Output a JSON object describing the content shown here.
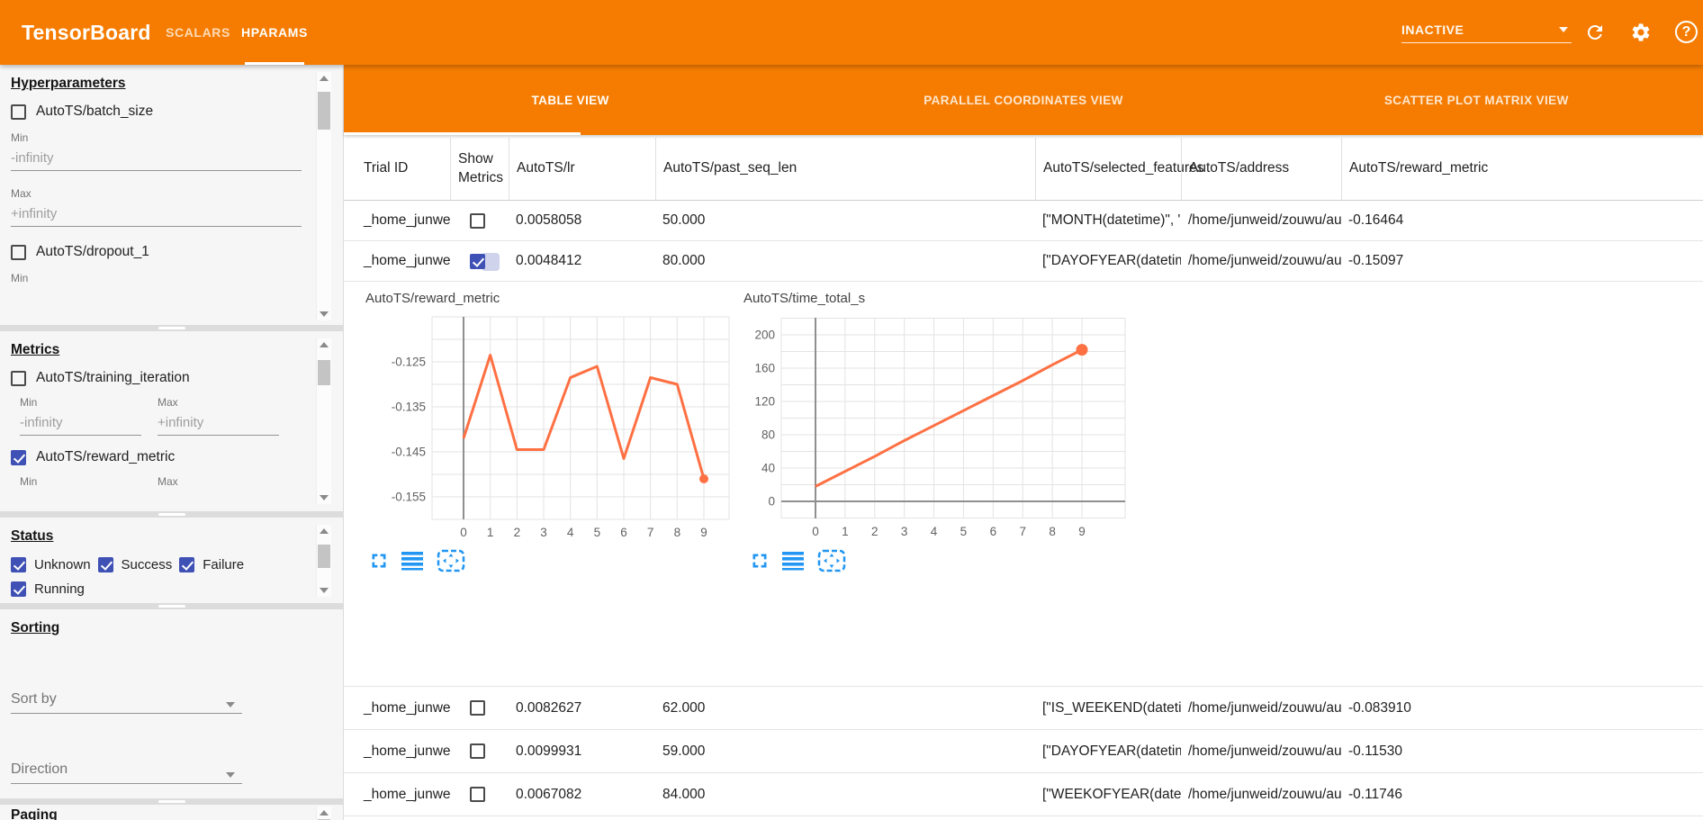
{
  "app": {
    "title": "TensorBoard",
    "nav_tabs": [
      {
        "label": "SCALARS",
        "active": false
      },
      {
        "label": "HPARAMS",
        "active": true
      }
    ],
    "run_status": {
      "value": "INACTIVE"
    },
    "help_glyph": "?"
  },
  "sidebar": {
    "hyperparameters": {
      "heading": "Hyperparameters",
      "items": [
        {
          "label": "AutoTS/batch_size",
          "checked": false,
          "min": {
            "label": "Min",
            "value": "-infinity"
          },
          "max": {
            "label": "Max",
            "value": "+infinity"
          }
        },
        {
          "label": "AutoTS/dropout_1",
          "checked": false,
          "min": {
            "label": "Min"
          }
        }
      ]
    },
    "metrics": {
      "heading": "Metrics",
      "items": [
        {
          "label": "AutoTS/training_iteration",
          "checked": false,
          "min": {
            "label": "Min",
            "value": "-infinity"
          },
          "max": {
            "label": "Max",
            "value": "+infinity"
          }
        },
        {
          "label": "AutoTS/reward_metric",
          "checked": true,
          "min": {
            "label": "Min"
          },
          "max": {
            "label": "Max"
          }
        }
      ]
    },
    "status": {
      "heading": "Status",
      "items": [
        {
          "label": "Unknown",
          "checked": true
        },
        {
          "label": "Success",
          "checked": true
        },
        {
          "label": "Failure",
          "checked": true
        },
        {
          "label": "Running",
          "checked": true
        }
      ]
    },
    "sorting": {
      "heading": "Sorting",
      "sort_by": {
        "label": "Sort by"
      },
      "direction": {
        "label": "Direction"
      }
    },
    "paging": {
      "heading": "Paging"
    }
  },
  "main": {
    "view_tabs": [
      {
        "label": "TABLE VIEW",
        "active": true
      },
      {
        "label": "PARALLEL COORDINATES VIEW",
        "active": false
      },
      {
        "label": "SCATTER PLOT MATRIX VIEW",
        "active": false
      }
    ],
    "table": {
      "columns": [
        "Trial ID",
        "Show Metrics",
        "AutoTS/lr",
        "AutoTS/past_seq_len",
        "AutoTS/selected_features",
        "AutoTS/address",
        "AutoTS/reward_metric"
      ],
      "top_rows": [
        {
          "trial_id": "_home_junweid_z…",
          "show_metrics": false,
          "lr": "0.0058058",
          "past_seq_len": "50.000",
          "selected_features": "[\"MONTH(datetime)\", \"I…",
          "address": "/home/junweid/zouwu/aut…",
          "reward_metric": "-0.16464"
        },
        {
          "trial_id": "_home_junweid_z…",
          "show_metrics": true,
          "lr": "0.0048412",
          "past_seq_len": "80.000",
          "selected_features": "[\"DAYOFYEAR(datetime…",
          "address": "/home/junweid/zouwu/aut…",
          "reward_metric": "-0.15097"
        }
      ],
      "bottom_rows": [
        {
          "trial_id": "_home_junweid_z…",
          "show_metrics": false,
          "lr": "0.0082627",
          "past_seq_len": "62.000",
          "selected_features": "[\"IS_WEEKEND(datetim…",
          "address": "/home/junweid/zouwu/aut…",
          "reward_metric": "-0.083910"
        },
        {
          "trial_id": "_home_junweid_z…",
          "show_metrics": false,
          "lr": "0.0099931",
          "past_seq_len": "59.000",
          "selected_features": "[\"DAYOFYEAR(datetime…",
          "address": "/home/junweid/zouwu/aut…",
          "reward_metric": "-0.11530"
        },
        {
          "trial_id": "_home_junweid_z…",
          "show_metrics": false,
          "lr": "0.0067082",
          "past_seq_len": "84.000",
          "selected_features": "[\"WEEKOFYEAR(dateti…",
          "address": "/home/junweid/zouwu/aut…",
          "reward_metric": "-0.11746"
        }
      ]
    }
  },
  "chart_data": [
    {
      "type": "line",
      "title": "AutoTS/reward_metric",
      "x": [
        0,
        1,
        2,
        3,
        4,
        5,
        6,
        7,
        8,
        9
      ],
      "values": [
        -0.142,
        -0.1235,
        -0.1445,
        -0.1445,
        -0.1285,
        -0.126,
        -0.1465,
        -0.1285,
        -0.13,
        -0.151
      ],
      "xlabel": "",
      "ylabel": "",
      "yticks": [
        -0.125,
        -0.135,
        -0.145,
        -0.155
      ],
      "ytick_labels": [
        "-0.125",
        "-0.135",
        "-0.145",
        "-0.155"
      ],
      "ylim": [
        -0.16,
        -0.115
      ],
      "grid_step": 0.005,
      "grid": true,
      "end_marker": true,
      "zero_axis": false
    },
    {
      "type": "line",
      "title": "AutoTS/time_total_s",
      "x": [
        0,
        1,
        2,
        3,
        4,
        5,
        6,
        7,
        8,
        9
      ],
      "values": [
        18,
        36,
        54,
        73,
        91,
        109,
        127,
        145,
        164,
        182
      ],
      "xlabel": "",
      "ylabel": "",
      "yticks": [
        200,
        160,
        120,
        80,
        40,
        0
      ],
      "ytick_labels": [
        "200",
        "160",
        "120",
        "80",
        "40",
        "0"
      ],
      "ylim": [
        -20.5,
        220.5
      ],
      "grid_step": 20,
      "grid": true,
      "end_marker": true,
      "zero_axis": true
    }
  ],
  "colors": {
    "header_orange": "#f57c00",
    "accent_indigo": "#3f51b5",
    "chart_line_orange": "#ff7043",
    "tool_icon_blue": "#2196f3"
  }
}
